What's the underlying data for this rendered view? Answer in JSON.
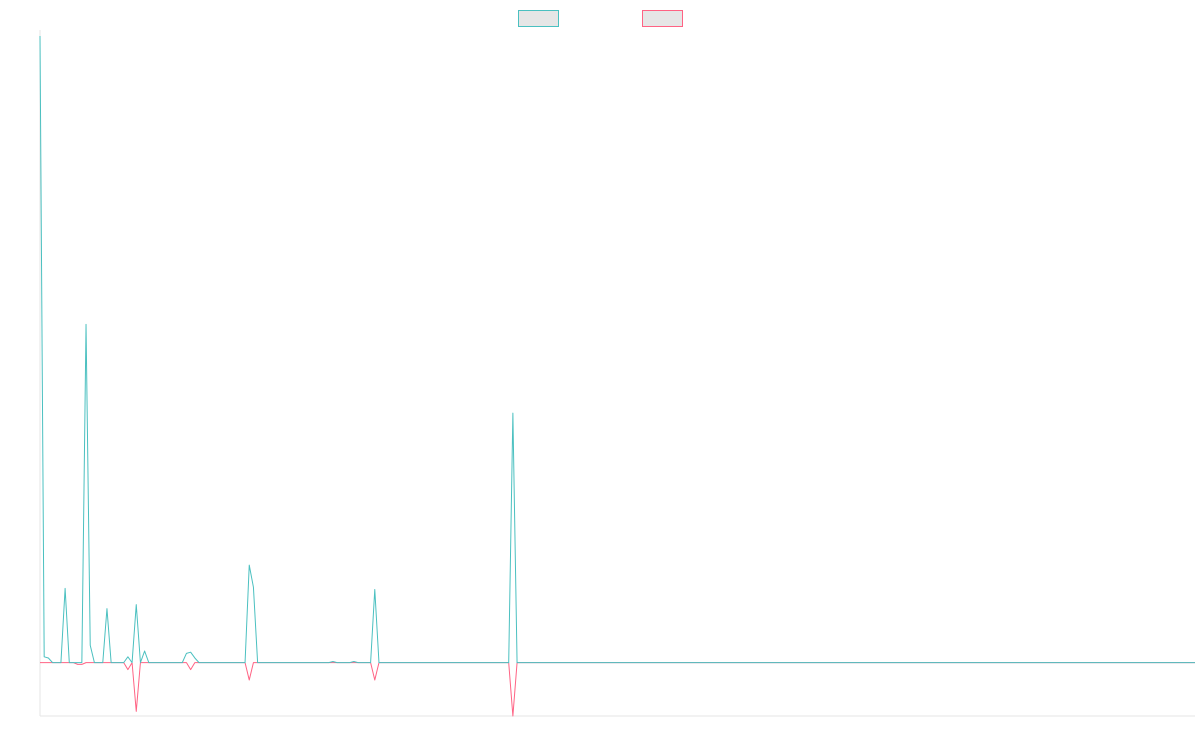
{
  "chart_data": {
    "type": "line",
    "title": "",
    "xlabel": "",
    "ylabel": "",
    "grid": false,
    "legend_position": "top-center",
    "xlim": [
      0,
      276
    ],
    "ylim": [
      -92,
      1080
    ],
    "series": [
      {
        "color": "#4bc0c0",
        "swatch_fill": "#e6e6e6",
        "points": [
          [
            0,
            1080
          ],
          [
            1,
            10
          ],
          [
            2,
            0
          ],
          [
            3,
            0
          ],
          [
            4,
            0
          ],
          [
            5,
            0
          ],
          [
            6,
            0
          ],
          [
            7,
            0
          ],
          [
            8,
            0
          ],
          [
            9,
            0
          ],
          [
            10,
            0
          ],
          [
            11,
            0
          ],
          [
            12,
            0
          ],
          [
            13,
            0
          ],
          [
            14,
            0
          ],
          [
            15,
            0
          ],
          [
            16,
            0
          ],
          [
            17,
            0
          ],
          [
            18,
            0
          ],
          [
            19,
            0
          ],
          [
            20,
            0
          ],
          [
            21,
            0
          ],
          [
            22,
            0
          ],
          [
            23,
            0
          ],
          [
            24,
            0
          ],
          [
            25,
            0
          ],
          [
            26,
            0
          ],
          [
            27,
            0
          ],
          [
            28,
            0
          ],
          [
            29,
            0
          ],
          [
            30,
            0
          ],
          [
            31,
            0
          ],
          [
            32,
            0
          ],
          [
            33,
            0
          ],
          [
            34,
            0
          ],
          [
            35,
            0
          ],
          [
            36,
            0
          ],
          [
            37,
            0
          ],
          [
            38,
            0
          ],
          [
            39,
            0
          ],
          [
            40,
            0
          ],
          [
            41,
            0
          ],
          [
            42,
            0
          ],
          [
            43,
            0
          ],
          [
            44,
            0
          ],
          [
            45,
            0
          ],
          [
            46,
            0
          ],
          [
            47,
            0
          ],
          [
            48,
            0
          ],
          [
            49,
            0
          ],
          [
            50,
            0
          ],
          [
            51,
            0
          ],
          [
            52,
            0
          ],
          [
            53,
            0
          ],
          [
            54,
            0
          ],
          [
            55,
            0
          ],
          [
            56,
            0
          ],
          [
            57,
            0
          ],
          [
            58,
            0
          ],
          [
            59,
            0
          ],
          [
            60,
            0
          ],
          [
            61,
            0
          ],
          [
            62,
            0
          ],
          [
            63,
            0
          ],
          [
            64,
            0
          ],
          [
            65,
            0
          ],
          [
            66,
            0
          ],
          [
            67,
            0
          ],
          [
            68,
            0
          ],
          [
            69,
            0
          ],
          [
            70,
            0
          ],
          [
            71,
            0
          ],
          [
            72,
            0
          ],
          [
            73,
            0
          ],
          [
            74,
            0
          ],
          [
            75,
            0
          ],
          [
            76,
            0
          ],
          [
            77,
            0
          ],
          [
            78,
            0
          ],
          [
            79,
            0
          ],
          [
            80,
            0
          ],
          [
            81,
            0
          ],
          [
            82,
            0
          ],
          [
            83,
            0
          ],
          [
            84,
            0
          ],
          [
            85,
            0
          ],
          [
            86,
            0
          ],
          [
            87,
            0
          ],
          [
            88,
            0
          ],
          [
            89,
            0
          ],
          [
            90,
            0
          ],
          [
            91,
            0
          ],
          [
            92,
            0
          ],
          [
            93,
            0
          ],
          [
            94,
            0
          ],
          [
            95,
            0
          ],
          [
            96,
            0
          ],
          [
            97,
            0
          ],
          [
            98,
            0
          ],
          [
            99,
            0
          ],
          [
            100,
            0
          ],
          [
            101,
            0
          ],
          [
            102,
            0
          ],
          [
            103,
            0
          ],
          [
            104,
            0
          ],
          [
            105,
            0
          ],
          [
            106,
            0
          ],
          [
            107,
            0
          ],
          [
            108,
            0
          ],
          [
            109,
            0
          ],
          [
            110,
            0
          ],
          [
            111,
            0
          ],
          [
            112,
            0
          ],
          [
            113,
            430
          ],
          [
            114,
            0
          ],
          [
            115,
            0
          ],
          [
            116,
            0
          ],
          [
            117,
            0
          ],
          [
            118,
            0
          ],
          [
            119,
            0
          ],
          [
            120,
            0
          ],
          [
            121,
            0
          ],
          [
            122,
            0
          ],
          [
            123,
            0
          ],
          [
            124,
            0
          ],
          [
            125,
            0
          ],
          [
            126,
            0
          ],
          [
            127,
            0
          ],
          [
            128,
            0
          ],
          [
            129,
            0
          ],
          [
            130,
            0
          ],
          [
            131,
            0
          ],
          [
            132,
            0
          ],
          [
            133,
            0
          ],
          [
            134,
            0
          ],
          [
            135,
            0
          ],
          [
            136,
            0
          ],
          [
            137,
            0
          ],
          [
            138,
            0
          ],
          [
            139,
            0
          ],
          [
            140,
            0
          ],
          [
            141,
            0
          ],
          [
            142,
            0
          ],
          [
            143,
            0
          ],
          [
            144,
            0
          ],
          [
            145,
            0
          ],
          [
            146,
            0
          ],
          [
            147,
            0
          ],
          [
            148,
            0
          ],
          [
            149,
            0
          ],
          [
            150,
            0
          ],
          [
            151,
            0
          ],
          [
            152,
            0
          ],
          [
            153,
            0
          ],
          [
            154,
            0
          ],
          [
            155,
            0
          ],
          [
            156,
            0
          ],
          [
            157,
            0
          ],
          [
            158,
            0
          ],
          [
            159,
            0
          ],
          [
            160,
            0
          ],
          [
            161,
            0
          ],
          [
            162,
            0
          ],
          [
            163,
            0
          ],
          [
            164,
            0
          ],
          [
            165,
            0
          ],
          [
            166,
            0
          ],
          [
            167,
            0
          ],
          [
            168,
            0
          ],
          [
            169,
            0
          ],
          [
            170,
            0
          ],
          [
            171,
            0
          ],
          [
            172,
            0
          ],
          [
            173,
            0
          ],
          [
            174,
            0
          ],
          [
            175,
            0
          ],
          [
            176,
            0
          ],
          [
            177,
            0
          ],
          [
            178,
            0
          ],
          [
            179,
            0
          ],
          [
            180,
            0
          ],
          [
            181,
            0
          ],
          [
            182,
            0
          ],
          [
            183,
            0
          ],
          [
            184,
            0
          ],
          [
            185,
            0
          ],
          [
            186,
            0
          ],
          [
            187,
            0
          ],
          [
            188,
            0
          ],
          [
            189,
            0
          ],
          [
            190,
            0
          ],
          [
            191,
            0
          ],
          [
            192,
            0
          ],
          [
            193,
            0
          ],
          [
            194,
            0
          ],
          [
            195,
            0
          ],
          [
            196,
            0
          ],
          [
            197,
            0
          ],
          [
            198,
            0
          ],
          [
            199,
            0
          ],
          [
            200,
            0
          ],
          [
            201,
            0
          ],
          [
            202,
            0
          ],
          [
            203,
            0
          ],
          [
            204,
            0
          ],
          [
            205,
            0
          ],
          [
            206,
            0
          ],
          [
            207,
            0
          ],
          [
            208,
            0
          ],
          [
            209,
            0
          ],
          [
            210,
            0
          ],
          [
            211,
            0
          ],
          [
            212,
            0
          ],
          [
            213,
            0
          ],
          [
            214,
            0
          ],
          [
            215,
            0
          ],
          [
            216,
            0
          ],
          [
            217,
            0
          ],
          [
            218,
            0
          ],
          [
            219,
            0
          ],
          [
            220,
            0
          ],
          [
            221,
            0
          ],
          [
            222,
            0
          ],
          [
            223,
            0
          ],
          [
            224,
            0
          ],
          [
            225,
            0
          ],
          [
            226,
            0
          ],
          [
            227,
            0
          ],
          [
            228,
            0
          ],
          [
            229,
            0
          ],
          [
            230,
            0
          ],
          [
            231,
            0
          ],
          [
            232,
            0
          ],
          [
            233,
            0
          ],
          [
            234,
            0
          ],
          [
            235,
            0
          ],
          [
            236,
            0
          ],
          [
            237,
            0
          ],
          [
            238,
            0
          ],
          [
            239,
            0
          ],
          [
            240,
            0
          ],
          [
            241,
            0
          ],
          [
            242,
            0
          ],
          [
            243,
            0
          ],
          [
            244,
            0
          ],
          [
            245,
            0
          ],
          [
            246,
            0
          ],
          [
            247,
            0
          ],
          [
            248,
            0
          ],
          [
            249,
            0
          ],
          [
            250,
            0
          ],
          [
            251,
            0
          ],
          [
            252,
            0
          ],
          [
            253,
            0
          ],
          [
            254,
            0
          ],
          [
            255,
            0
          ],
          [
            256,
            0
          ],
          [
            257,
            0
          ],
          [
            258,
            0
          ],
          [
            259,
            0
          ],
          [
            260,
            0
          ],
          [
            261,
            0
          ],
          [
            262,
            0
          ],
          [
            263,
            0
          ],
          [
            264,
            0
          ],
          [
            265,
            0
          ],
          [
            266,
            0
          ],
          [
            267,
            0
          ],
          [
            268,
            0
          ],
          [
            269,
            0
          ],
          [
            270,
            0
          ],
          [
            271,
            0
          ],
          [
            272,
            0
          ],
          [
            273,
            0
          ],
          [
            274,
            0
          ],
          [
            275,
            0
          ],
          [
            276,
            0
          ]
        ],
        "overrides": [
          [
            2,
            8
          ],
          [
            3,
            0
          ],
          [
            4,
            0
          ],
          [
            5,
            0
          ],
          [
            6,
            128
          ],
          [
            7,
            0
          ],
          [
            10,
            0
          ],
          [
            9,
            0
          ],
          [
            11,
            583
          ],
          [
            12,
            30
          ],
          [
            13,
            0
          ],
          [
            16,
            93
          ],
          [
            17,
            0
          ],
          [
            21,
            10
          ],
          [
            22,
            0
          ],
          [
            23,
            100
          ],
          [
            24,
            0
          ],
          [
            25,
            20
          ],
          [
            26,
            0
          ],
          [
            35,
            16
          ],
          [
            36,
            18
          ],
          [
            37,
            8
          ],
          [
            50,
            168
          ],
          [
            51,
            130
          ],
          [
            52,
            0
          ],
          [
            70,
            2
          ],
          [
            75,
            2
          ],
          [
            74,
            0
          ],
          [
            76,
            0
          ],
          [
            80,
            126
          ],
          [
            81,
            0
          ]
        ]
      },
      {
        "color": "#ff6384",
        "swatch_fill": "#e6e6e6",
        "points": [],
        "overrides": [
          [
            0,
            0
          ],
          [
            9,
            -3
          ],
          [
            10,
            -3
          ],
          [
            11,
            0
          ],
          [
            21,
            -12
          ],
          [
            23,
            -84
          ],
          [
            36,
            -12
          ],
          [
            50,
            -30
          ],
          [
            80,
            -30
          ],
          [
            113,
            -92
          ],
          [
            276,
            0
          ]
        ]
      }
    ]
  }
}
